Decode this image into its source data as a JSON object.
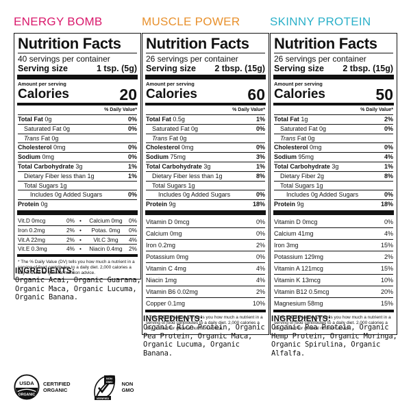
{
  "products": [
    {
      "title": "ENERGY BOMB",
      "title_color": "#d9186b",
      "panel": {
        "heading": "Nutrition Facts",
        "servings": "40 servings per container",
        "serving_size_label": "Serving size",
        "serving_size_value": "1 tsp. (5g)",
        "amount_per": "Amount per serving",
        "calories_label": "Calories",
        "calories_value": "20",
        "dv_header": "% Daily Value*",
        "rows": [
          {
            "name_bold": "Total Fat",
            "name": " 0g",
            "pct": "0%"
          },
          {
            "name": "Saturated Fat 0g",
            "pct": "0%",
            "indent": 1
          },
          {
            "name_italic": "Trans",
            "name": " Fat 0g",
            "pct": "",
            "indent": 1
          },
          {
            "name_bold": "Cholesterol",
            "name": " 0mg",
            "pct": "0%"
          },
          {
            "name_bold": "Sodium",
            "name": " 0mg",
            "pct": "0%"
          },
          {
            "name_bold": "Total Carbohydrate",
            "name": " 3g",
            "pct": "1%"
          },
          {
            "name": "Dietary Fiber less than 1g",
            "pct": "1%",
            "indent": 1
          },
          {
            "name": "Total Sugars 1g",
            "pct": "",
            "indent": 1
          },
          {
            "name": "Includes 0g Added Sugars",
            "pct": "0%",
            "indent": 2
          },
          {
            "name_bold": "Protein",
            "name": " 0g",
            "pct": ""
          }
        ],
        "micro_rows": [
          {
            "a_name": "Vit.D 0mcg",
            "a_pct": "0%",
            "b_name": "Calcium 0mg",
            "b_pct": "0%"
          },
          {
            "a_name": "Iron 0.2mg",
            "a_pct": "2%",
            "b_name": "Potas. 0mg",
            "b_pct": "0%"
          },
          {
            "a_name": "Vit.A 22mg",
            "a_pct": "2%",
            "b_name": "Vit.C 3mg",
            "b_pct": "4%"
          },
          {
            "a_name": "Vit.E 0.3mg",
            "a_pct": "4%",
            "b_name": "Niacin 0.4mg",
            "b_pct": "2%"
          }
        ],
        "footnote": "* The % Daily Value (DV) tells you how much a nutrient in a serving of food contributes to a daily diet. 2,000 calories a day is used for general nutrition advice."
      },
      "ingredients_title": "INGREDIENTS:",
      "ingredients": "Organic Acai, Organic Guarana, Organic Maca, Organic Lucuma, Organic Banana."
    },
    {
      "title": "MUSCLE POWER",
      "title_color": "#e8902c",
      "panel": {
        "heading": "Nutrition Facts",
        "servings": "26 servings per container",
        "serving_size_label": "Serving size",
        "serving_size_value": "2 tbsp. (15g)",
        "amount_per": "Amount per serving",
        "calories_label": "Calories",
        "calories_value": "60",
        "dv_header": "% Daily Value*",
        "rows": [
          {
            "name_bold": "Total Fat",
            "name": " 0.5g",
            "pct": "1%"
          },
          {
            "name": "Saturated Fat 0g",
            "pct": "0%",
            "indent": 1
          },
          {
            "name_italic": "Trans",
            "name": " Fat 0g",
            "pct": "",
            "indent": 1
          },
          {
            "name_bold": "Cholesterol",
            "name": " 0mg",
            "pct": "0%"
          },
          {
            "name_bold": "Sodium",
            "name": " 75mg",
            "pct": "3%"
          },
          {
            "name_bold": "Total Carbohydrate",
            "name": " 3g",
            "pct": "1%"
          },
          {
            "name": "Dietary Fiber less than 1g",
            "pct": "8%",
            "indent": 1
          },
          {
            "name": "Total Sugars 1g",
            "pct": "",
            "indent": 1
          },
          {
            "name": "Includes 0g Added Sugars",
            "pct": "0%",
            "indent": 2
          },
          {
            "name_bold": "Protein",
            "name": " 9g",
            "pct": "18%"
          }
        ],
        "vitamins": [
          {
            "name": "Vitamin D 0mcg",
            "pct": "0%"
          },
          {
            "name": "Calcium 0mg",
            "pct": "0%"
          },
          {
            "name": "Iron 0.2mg",
            "pct": "2%"
          },
          {
            "name": "Potassium 0mg",
            "pct": "0%"
          },
          {
            "name": "Vitamin C 4mg",
            "pct": "4%"
          },
          {
            "name": "Niacin 1mg",
            "pct": "4%"
          },
          {
            "name": "Vitamin B6 0.02mg",
            "pct": "2%"
          },
          {
            "name": "Copper 0.1mg",
            "pct": "10%"
          }
        ],
        "footnote": "* The % Daily Value (DV) tells you how much a nutrient in a serving of food contributes to a daily diet. 2,000 calories a day is used for general nutrition advice."
      },
      "ingredients_title": "INGREDIENTS:",
      "ingredients": "Organic Rice Protein, Organic Pea Protein, Organic Maca, Organic Lucuma, Organic Banana."
    },
    {
      "title": "SKINNY PROTEIN",
      "title_color": "#2bb0c9",
      "panel": {
        "heading": "Nutrition Facts",
        "servings": "26 servings per container",
        "serving_size_label": "Serving size",
        "serving_size_value": "2 tbsp. (15g)",
        "amount_per": "Amount per serving",
        "calories_label": "Calories",
        "calories_value": "50",
        "dv_header": "% Daily Value*",
        "rows": [
          {
            "name_bold": "Total Fat",
            "name": " 1g",
            "pct": "2%"
          },
          {
            "name": "Saturated Fat 0g",
            "pct": "0%",
            "indent": 1
          },
          {
            "name_italic": "Trans",
            "name": " Fat 0g",
            "pct": "",
            "indent": 1
          },
          {
            "name_bold": "Cholesterol",
            "name": " 0mg",
            "pct": "0%"
          },
          {
            "name_bold": "Sodium",
            "name": " 95mg",
            "pct": "4%"
          },
          {
            "name_bold": "Total Carbohydrate",
            "name": " 3g",
            "pct": "1%"
          },
          {
            "name": "Dietary Fiber 2g",
            "pct": "8%",
            "indent": 1
          },
          {
            "name": "Total Sugars 1g",
            "pct": "",
            "indent": 1
          },
          {
            "name": "Includes 0g Added Sugars",
            "pct": "0%",
            "indent": 2
          },
          {
            "name_bold": "Protein",
            "name": " 9g",
            "pct": "18%"
          }
        ],
        "vitamins": [
          {
            "name": "Vitamin D 0mcg",
            "pct": "0%"
          },
          {
            "name": "Calcium 41mg",
            "pct": "4%"
          },
          {
            "name": "Iron 3mg",
            "pct": "15%"
          },
          {
            "name": "Potassium 129mg",
            "pct": "2%"
          },
          {
            "name": "Vitamin A 121mcg",
            "pct": "15%"
          },
          {
            "name": "Vitamin K 13mcg",
            "pct": "10%"
          },
          {
            "name": "Vitamin B12 0.5mcg",
            "pct": "20%"
          },
          {
            "name": "Magnesium 58mg",
            "pct": "15%"
          }
        ],
        "footnote": "* The % Daily Value (DV) tells you how much a nutrient in a serving of food contributes to a daily diet. 2,000 calories a day is used for general nutrition advice."
      },
      "ingredients_title": "INGREDIENTS:",
      "ingredients": "Organic Pea Protein, Organic Hemp Protein, Organic Moringa, Organic Spirulina, Organic Alfalfa."
    }
  ],
  "badges": {
    "usda_seal": "USDA ORGANIC",
    "certified_organic": [
      "CERTIFIED",
      "ORGANIC"
    ],
    "non_gmo_seal": "NON GMO Project VERIFIED",
    "non_gmo": [
      "NON",
      "GMO"
    ]
  }
}
